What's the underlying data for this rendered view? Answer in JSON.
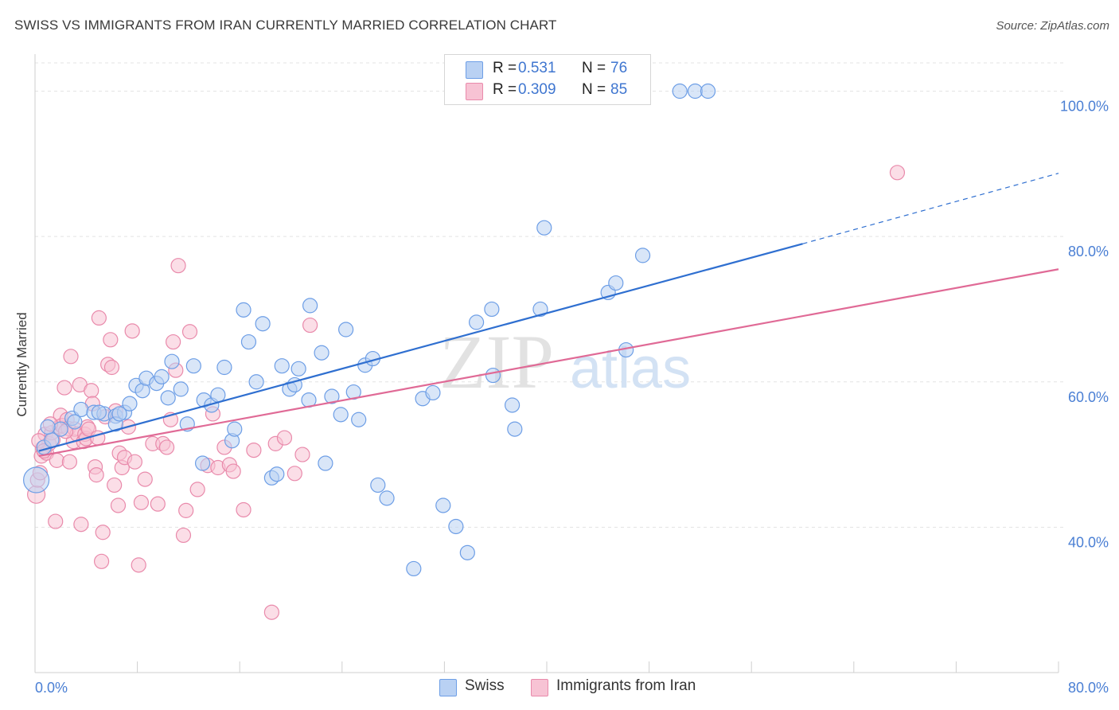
{
  "header": {
    "title": "SWISS VS IMMIGRANTS FROM IRAN CURRENTLY MARRIED CORRELATION CHART",
    "source": "Source: ZipAtlas.com"
  },
  "watermark": {
    "zip": "ZIP",
    "atlas": "atlas"
  },
  "colors": {
    "swiss_fill": "#b9d1f3",
    "swiss_stroke": "#6d9ee6",
    "swiss_line": "#2f6fd0",
    "iran_fill": "#f7c3d4",
    "iran_stroke": "#e98aab",
    "iran_line": "#e06a96",
    "tick_text": "#4a7fd4",
    "grid": "#e3e3e3"
  },
  "legend": {
    "rows": [
      {
        "r_label": "R =",
        "r_value": "0.531",
        "n_label": "N =",
        "n_value": "76"
      },
      {
        "r_label": "R =",
        "r_value": "0.309",
        "n_label": "N =",
        "n_value": "85"
      }
    ]
  },
  "bottom_legend": [
    "Swiss",
    "Immigrants from Iran"
  ],
  "chart_data": {
    "type": "scatter",
    "xlabel": "",
    "ylabel": "Currently Married",
    "xlim": [
      0,
      80
    ],
    "ylim": [
      20,
      104
    ],
    "x_tick_labels": [
      "0.0%",
      "80.0%"
    ],
    "y_ticks": [
      40,
      60,
      80,
      100
    ],
    "y_tick_labels": [
      "40.0%",
      "60.0%",
      "80.0%",
      "100.0%"
    ],
    "grid": true,
    "legend_position": "top-center",
    "series": [
      {
        "name": "Swiss",
        "r": 0.531,
        "n": 76,
        "trend": {
          "x": [
            0.3,
            60
          ],
          "y": [
            50.5,
            79.0
          ],
          "dashed_to": [
            80,
            88.7
          ]
        },
        "points": [
          [
            0.1,
            46.5
          ],
          [
            0.7,
            51.0
          ],
          [
            1.3,
            52.0
          ],
          [
            2.0,
            53.5
          ],
          [
            2.9,
            55.0
          ],
          [
            3.6,
            56.2
          ],
          [
            4.6,
            55.8
          ],
          [
            5.4,
            55.6
          ],
          [
            6.3,
            55.3
          ],
          [
            6.3,
            54.2
          ],
          [
            7.0,
            55.8
          ],
          [
            7.4,
            57.0
          ],
          [
            7.9,
            59.5
          ],
          [
            8.4,
            58.8
          ],
          [
            8.7,
            60.5
          ],
          [
            9.5,
            59.8
          ],
          [
            9.9,
            60.7
          ],
          [
            10.4,
            57.8
          ],
          [
            10.7,
            62.8
          ],
          [
            11.4,
            59.0
          ],
          [
            11.9,
            54.2
          ],
          [
            12.4,
            62.2
          ],
          [
            13.1,
            48.8
          ],
          [
            13.2,
            57.5
          ],
          [
            13.8,
            56.8
          ],
          [
            14.3,
            58.2
          ],
          [
            14.8,
            62.0
          ],
          [
            15.4,
            51.9
          ],
          [
            15.6,
            53.5
          ],
          [
            16.3,
            69.9
          ],
          [
            16.7,
            65.5
          ],
          [
            17.3,
            60.0
          ],
          [
            17.8,
            68.0
          ],
          [
            18.5,
            46.8
          ],
          [
            18.9,
            47.3
          ],
          [
            19.3,
            62.2
          ],
          [
            19.9,
            59.0
          ],
          [
            20.3,
            59.6
          ],
          [
            20.6,
            61.8
          ],
          [
            21.4,
            57.5
          ],
          [
            21.5,
            70.5
          ],
          [
            22.4,
            64.0
          ],
          [
            22.7,
            48.8
          ],
          [
            23.2,
            58.0
          ],
          [
            23.9,
            55.5
          ],
          [
            24.3,
            67.2
          ],
          [
            24.9,
            58.6
          ],
          [
            25.3,
            54.8
          ],
          [
            25.8,
            62.3
          ],
          [
            26.4,
            63.2
          ],
          [
            26.8,
            45.8
          ],
          [
            27.5,
            44.0
          ],
          [
            29.6,
            34.3
          ],
          [
            30.3,
            57.7
          ],
          [
            31.1,
            58.5
          ],
          [
            31.9,
            43.0
          ],
          [
            32.9,
            40.1
          ],
          [
            33.8,
            36.5
          ],
          [
            34.5,
            68.2
          ],
          [
            35.7,
            70.0
          ],
          [
            35.8,
            60.9
          ],
          [
            37.3,
            56.8
          ],
          [
            37.5,
            53.5
          ],
          [
            39.5,
            70.0
          ],
          [
            39.8,
            81.2
          ],
          [
            44.8,
            72.3
          ],
          [
            45.4,
            73.6
          ],
          [
            46.2,
            64.4
          ],
          [
            47.5,
            77.4
          ],
          [
            50.4,
            100.0
          ],
          [
            51.6,
            100.0
          ],
          [
            52.6,
            100.0
          ],
          [
            1.0,
            53.8
          ],
          [
            5.0,
            55.8
          ],
          [
            3.1,
            54.5
          ],
          [
            6.6,
            55.6
          ]
        ]
      },
      {
        "name": "Immigrants from Iran",
        "r": 0.309,
        "n": 85,
        "trend": {
          "x": [
            0.3,
            80
          ],
          "y": [
            49.8,
            75.5
          ]
        },
        "points": [
          [
            0.1,
            44.5
          ],
          [
            0.2,
            46.5
          ],
          [
            0.4,
            47.5
          ],
          [
            0.5,
            49.8
          ],
          [
            0.6,
            50.9
          ],
          [
            0.8,
            52.8
          ],
          [
            0.9,
            50.2
          ],
          [
            1.1,
            51.5
          ],
          [
            1.3,
            53.0
          ],
          [
            1.4,
            52.0
          ],
          [
            1.6,
            40.8
          ],
          [
            1.7,
            49.2
          ],
          [
            1.9,
            53.8
          ],
          [
            2.0,
            55.4
          ],
          [
            2.1,
            54.0
          ],
          [
            2.3,
            59.2
          ],
          [
            2.5,
            54.8
          ],
          [
            2.6,
            53.6
          ],
          [
            2.7,
            49.0
          ],
          [
            2.8,
            63.5
          ],
          [
            3.0,
            51.8
          ],
          [
            3.1,
            53.5
          ],
          [
            3.3,
            52.8
          ],
          [
            3.5,
            59.6
          ],
          [
            3.6,
            40.4
          ],
          [
            3.8,
            51.8
          ],
          [
            3.9,
            52.8
          ],
          [
            4.0,
            52.2
          ],
          [
            4.1,
            53.8
          ],
          [
            4.2,
            53.5
          ],
          [
            4.4,
            58.8
          ],
          [
            4.5,
            57.0
          ],
          [
            4.7,
            48.3
          ],
          [
            4.8,
            47.2
          ],
          [
            5.0,
            68.8
          ],
          [
            5.2,
            35.3
          ],
          [
            5.3,
            39.3
          ],
          [
            5.5,
            55.2
          ],
          [
            5.7,
            62.4
          ],
          [
            5.9,
            65.8
          ],
          [
            6.0,
            62.0
          ],
          [
            6.2,
            45.8
          ],
          [
            6.3,
            56.0
          ],
          [
            6.5,
            43.0
          ],
          [
            6.6,
            50.2
          ],
          [
            6.8,
            48.2
          ],
          [
            7.0,
            49.6
          ],
          [
            7.3,
            53.8
          ],
          [
            7.6,
            67.0
          ],
          [
            7.8,
            49.0
          ],
          [
            8.1,
            34.8
          ],
          [
            8.3,
            43.4
          ],
          [
            8.6,
            46.6
          ],
          [
            9.2,
            51.5
          ],
          [
            9.6,
            43.2
          ],
          [
            10.0,
            51.5
          ],
          [
            10.3,
            51.0
          ],
          [
            10.6,
            54.8
          ],
          [
            10.8,
            65.5
          ],
          [
            11.0,
            61.6
          ],
          [
            11.2,
            76.0
          ],
          [
            11.6,
            38.9
          ],
          [
            11.8,
            42.3
          ],
          [
            12.1,
            66.9
          ],
          [
            12.7,
            45.2
          ],
          [
            13.5,
            48.5
          ],
          [
            13.9,
            55.6
          ],
          [
            14.3,
            48.2
          ],
          [
            14.8,
            51.0
          ],
          [
            15.2,
            48.6
          ],
          [
            15.5,
            47.7
          ],
          [
            16.3,
            42.4
          ],
          [
            17.1,
            50.6
          ],
          [
            18.5,
            28.3
          ],
          [
            18.8,
            51.5
          ],
          [
            19.5,
            52.3
          ],
          [
            20.3,
            47.4
          ],
          [
            20.9,
            50.0
          ],
          [
            21.5,
            67.8
          ],
          [
            0.3,
            51.9
          ],
          [
            0.7,
            50.5
          ],
          [
            1.2,
            54.2
          ],
          [
            2.4,
            53.2
          ],
          [
            4.9,
            52.3
          ],
          [
            67.4,
            88.8
          ]
        ]
      }
    ]
  }
}
